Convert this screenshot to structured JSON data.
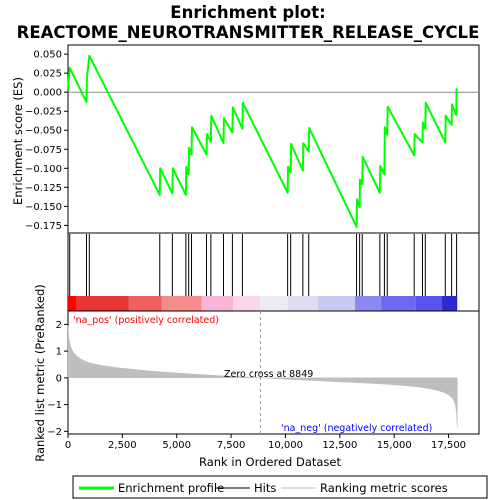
{
  "chart_data": {
    "type": "line",
    "title_line1": "Enrichment plot:",
    "title_line2": "REACTOME_NEUROTRANSMITTER_RELEASE_CYCLE",
    "top_panel": {
      "ylabel": "Enrichment score (ES)",
      "ylim": [
        -0.185,
        0.062
      ],
      "yticks": [
        0.05,
        0.025,
        0.0,
        -0.025,
        -0.05,
        -0.075,
        -0.1,
        -0.125,
        -0.15,
        -0.175
      ],
      "ytick_labels": [
        "0.050",
        "0.025",
        "0.000",
        "−0.025",
        "−0.050",
        "−0.075",
        "−0.100",
        "−0.125",
        "−0.150",
        "−0.175"
      ],
      "series": [
        {
          "name": "Enrichment profile",
          "color": "#00ff00",
          "x": [
            0,
            80,
            850,
            870,
            980,
            4220,
            4240,
            4800,
            4820,
            5420,
            5440,
            5550,
            5570,
            5680,
            5700,
            6370,
            6390,
            6570,
            6590,
            7150,
            7170,
            7560,
            7580,
            8020,
            8040,
            10100,
            10120,
            10240,
            10260,
            10800,
            10820,
            11070,
            11090,
            13270,
            13290,
            13410,
            13430,
            13530,
            13550,
            14340,
            14360,
            14550,
            14570,
            14680,
            14700,
            15920,
            15940,
            16300,
            16320,
            16430,
            16450,
            17350,
            17370,
            17640,
            17660,
            17850,
            17870,
            17900
          ],
          "y": [
            0.003,
            0.032,
            -0.013,
            0.018,
            0.048,
            -0.135,
            -0.1,
            -0.133,
            -0.1,
            -0.135,
            -0.098,
            -0.108,
            -0.073,
            -0.082,
            -0.046,
            -0.082,
            -0.055,
            -0.065,
            -0.031,
            -0.067,
            -0.034,
            -0.053,
            -0.02,
            -0.048,
            -0.014,
            -0.132,
            -0.098,
            -0.106,
            -0.068,
            -0.103,
            -0.067,
            -0.078,
            -0.047,
            -0.177,
            -0.141,
            -0.151,
            -0.115,
            -0.121,
            -0.085,
            -0.132,
            -0.097,
            -0.108,
            -0.046,
            -0.056,
            -0.019,
            -0.083,
            -0.055,
            -0.066,
            -0.04,
            -0.048,
            -0.014,
            -0.066,
            -0.031,
            -0.043,
            -0.016,
            -0.03,
            0.004,
            0.003
          ]
        }
      ],
      "zero_line": 0.0
    },
    "hits": {
      "name": "Hits",
      "x": [
        80,
        850,
        980,
        4220,
        4800,
        5420,
        5550,
        5680,
        6370,
        6570,
        7150,
        7560,
        8020,
        10100,
        10240,
        10800,
        11070,
        13270,
        13410,
        13530,
        14340,
        14550,
        14680,
        15920,
        16300,
        16430,
        17350,
        17640,
        17870
      ]
    },
    "rank_bar": {
      "zero_cross_x": 8849,
      "segments": [
        {
          "x0": 0,
          "x1": 400,
          "color": "#ff0000"
        },
        {
          "x0": 400,
          "x1": 2800,
          "color": "#e63535"
        },
        {
          "x0": 2800,
          "x1": 4300,
          "color": "#f06060"
        },
        {
          "x0": 4300,
          "x1": 6150,
          "color": "#f48c8c"
        },
        {
          "x0": 6150,
          "x1": 7600,
          "color": "#f7b5d9"
        },
        {
          "x0": 7600,
          "x1": 8849,
          "color": "#fad6ee"
        },
        {
          "x0": 8849,
          "x1": 10100,
          "color": "#ebebf6"
        },
        {
          "x0": 10100,
          "x1": 11500,
          "color": "#dcdcf2"
        },
        {
          "x0": 11500,
          "x1": 13200,
          "color": "#c8c8f0"
        },
        {
          "x0": 13200,
          "x1": 14400,
          "color": "#8a8af0"
        },
        {
          "x0": 14400,
          "x1": 16000,
          "color": "#6a6af0"
        },
        {
          "x0": 16000,
          "x1": 17200,
          "color": "#5555ee"
        },
        {
          "x0": 17200,
          "x1": 17900,
          "color": "#2a2ad0"
        }
      ]
    },
    "bottom_panel": {
      "ylabel": "Ranked list metric (PreRanked)",
      "xlabel": "Rank in Ordered Dataset",
      "xlim": [
        0,
        18900
      ],
      "ylim": [
        -2.1,
        2.5
      ],
      "xticks": [
        0,
        2500,
        5000,
        7500,
        10000,
        12500,
        15000,
        17500
      ],
      "xtick_labels": [
        "0",
        "2,500",
        "5,000",
        "7,500",
        "10,000",
        "12,500",
        "15,000",
        "17,500"
      ],
      "yticks": [
        2,
        1,
        0,
        -1,
        -2
      ],
      "ytick_labels": [
        "2",
        "1",
        "0",
        "−1",
        "−2"
      ],
      "fill_color": "#bebebe",
      "series": [
        {
          "name": "Ranking metric scores",
          "x": [
            0,
            30,
            80,
            150,
            250,
            400,
            600,
            850,
            1100,
            1500,
            2000,
            2500,
            3000,
            3500,
            4000,
            5000,
            6000,
            7000,
            8000,
            8849,
            9500,
            10500,
            11500,
            12500,
            13500,
            14500,
            15500,
            16000,
            16500,
            17000,
            17300,
            17500,
            17650,
            17750,
            17820,
            17870,
            17900
          ],
          "y": [
            1.95,
            1.55,
            1.3,
            1.1,
            0.95,
            0.82,
            0.7,
            0.6,
            0.54,
            0.47,
            0.41,
            0.36,
            0.32,
            0.28,
            0.24,
            0.18,
            0.13,
            0.08,
            0.04,
            0.0,
            -0.03,
            -0.07,
            -0.11,
            -0.15,
            -0.19,
            -0.23,
            -0.29,
            -0.33,
            -0.39,
            -0.47,
            -0.55,
            -0.64,
            -0.74,
            -0.86,
            -1.02,
            -1.35,
            -1.85
          ]
        }
      ]
    },
    "annotations": {
      "pos_label": "'na_pos' (positively correlated)",
      "pos_color": "#ff0000",
      "neg_label": "'na_neg' (negatively correlated)",
      "neg_color": "#0000ff",
      "zero_cross": "Zero cross at 8849"
    },
    "legend": {
      "items": [
        {
          "label": "Enrichment profile",
          "color": "#00ff00"
        },
        {
          "label": "Hits",
          "color": "#000000"
        },
        {
          "label": "Ranking metric scores",
          "color": "#bebebe"
        }
      ],
      "placement": "bottom"
    }
  }
}
